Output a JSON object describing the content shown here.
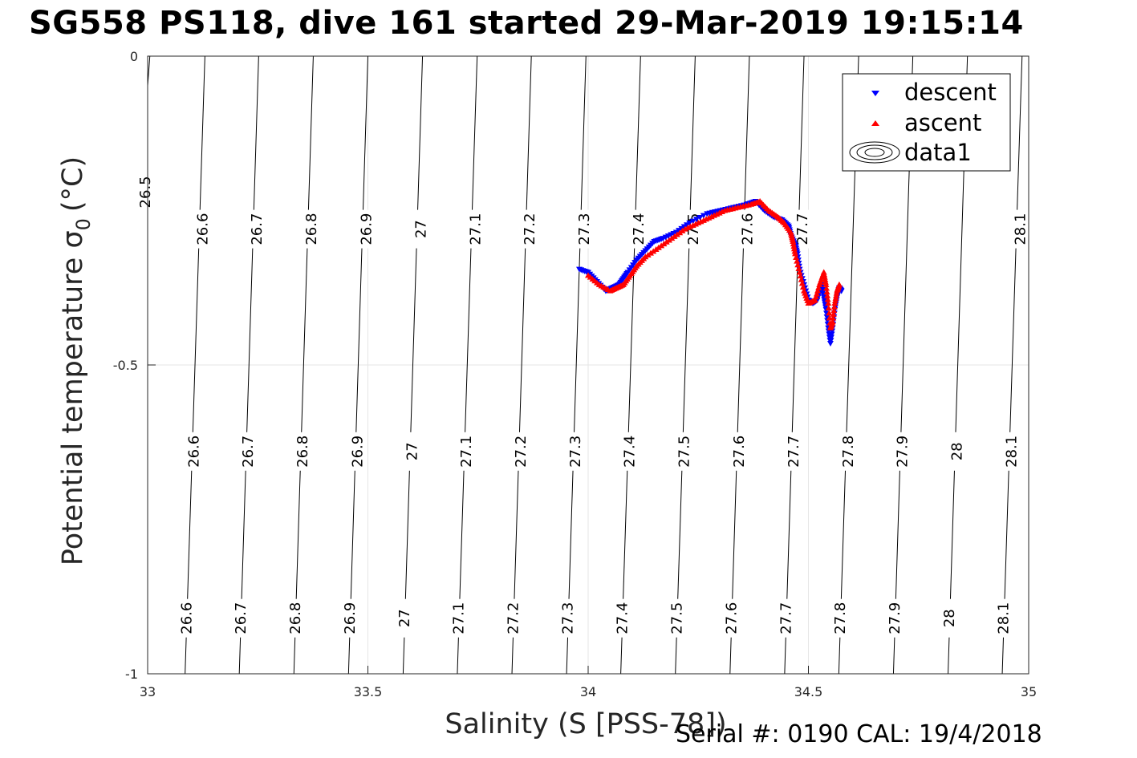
{
  "figure": {
    "title": "SG558 PS118, dive 161 started 29-Mar-2019 19:15:14",
    "footer": "Serial #: 0190  CAL: 19/4/2018"
  },
  "chart_data": {
    "type": "scatter",
    "title": "SG558 PS118, dive 161 started 29-Mar-2019 19:15:14",
    "xlabel": "Salinity (S [PSS-78])",
    "ylabel": "Potential temperature σ",
    "ylabel_subscript": "0",
    "ylabel_unit": "(°C)",
    "xlim": [
      33,
      35
    ],
    "ylim": [
      -1,
      0
    ],
    "xticks": [
      33,
      33.5,
      34,
      34.5,
      35
    ],
    "xtick_labels": [
      "33",
      "33.5",
      "34",
      "34.5",
      "35"
    ],
    "yticks": [
      0,
      -0.5,
      -1
    ],
    "ytick_labels": [
      "0",
      "-0.5",
      "-1"
    ],
    "grid": true,
    "legend": {
      "position": "top-right",
      "entries": [
        "descent",
        "ascent",
        "data1"
      ]
    },
    "colors": {
      "descent": "#0000ff",
      "ascent": "#ff0000",
      "contour": "#000000",
      "grid": "#e6e6e6"
    },
    "contours": [
      {
        "level": "26.5",
        "x_top": 33.005,
        "x_bottom": 32.9,
        "labels": [
          {
            "x": 32.995,
            "y": -0.22
          }
        ]
      },
      {
        "level": "26.6",
        "x_top": 33.13,
        "x_bottom": 33.085,
        "labels": [
          {
            "x": 33.125,
            "y": -0.28
          },
          {
            "x": 33.105,
            "y": -0.64
          },
          {
            "x": 33.088,
            "y": -0.91
          }
        ]
      },
      {
        "level": "26.7",
        "x_top": 33.252,
        "x_bottom": 33.208,
        "labels": [
          {
            "x": 33.248,
            "y": -0.28
          },
          {
            "x": 33.228,
            "y": -0.64
          },
          {
            "x": 33.211,
            "y": -0.91
          }
        ]
      },
      {
        "level": "26.8",
        "x_top": 33.376,
        "x_bottom": 33.332,
        "labels": [
          {
            "x": 33.372,
            "y": -0.28
          },
          {
            "x": 33.352,
            "y": -0.64
          },
          {
            "x": 33.335,
            "y": -0.91
          }
        ]
      },
      {
        "level": "26.9",
        "x_top": 33.5,
        "x_bottom": 33.456,
        "labels": [
          {
            "x": 33.496,
            "y": -0.28
          },
          {
            "x": 33.476,
            "y": -0.64
          },
          {
            "x": 33.459,
            "y": -0.91
          }
        ]
      },
      {
        "level": "27",
        "x_top": 33.624,
        "x_bottom": 33.58,
        "labels": [
          {
            "x": 33.62,
            "y": -0.28
          },
          {
            "x": 33.6,
            "y": -0.64
          },
          {
            "x": 33.583,
            "y": -0.91
          }
        ]
      },
      {
        "level": "27.1",
        "x_top": 33.748,
        "x_bottom": 33.703,
        "labels": [
          {
            "x": 33.744,
            "y": -0.28
          },
          {
            "x": 33.723,
            "y": -0.64
          },
          {
            "x": 33.706,
            "y": -0.91
          }
        ]
      },
      {
        "level": "27.2",
        "x_top": 33.871,
        "x_bottom": 33.827,
        "labels": [
          {
            "x": 33.867,
            "y": -0.28
          },
          {
            "x": 33.847,
            "y": -0.64
          },
          {
            "x": 33.83,
            "y": -0.91
          }
        ]
      },
      {
        "level": "27.3",
        "x_top": 33.995,
        "x_bottom": 33.951,
        "labels": [
          {
            "x": 33.991,
            "y": -0.28
          },
          {
            "x": 33.971,
            "y": -0.64
          },
          {
            "x": 33.954,
            "y": -0.91
          }
        ]
      },
      {
        "level": "27.4",
        "x_top": 34.119,
        "x_bottom": 34.074,
        "labels": [
          {
            "x": 34.115,
            "y": -0.28
          },
          {
            "x": 34.094,
            "y": -0.64
          },
          {
            "x": 34.077,
            "y": -0.91
          }
        ]
      },
      {
        "level": "27.5",
        "x_top": 34.243,
        "x_bottom": 34.198,
        "labels": [
          {
            "x": 34.239,
            "y": -0.28
          },
          {
            "x": 34.218,
            "y": -0.64
          },
          {
            "x": 34.201,
            "y": -0.91
          }
        ]
      },
      {
        "level": "27.6",
        "x_top": 34.366,
        "x_bottom": 34.322,
        "labels": [
          {
            "x": 34.362,
            "y": -0.28
          },
          {
            "x": 34.342,
            "y": -0.64
          },
          {
            "x": 34.325,
            "y": -0.91
          }
        ]
      },
      {
        "level": "27.7",
        "x_top": 34.49,
        "x_bottom": 34.446,
        "labels": [
          {
            "x": 34.486,
            "y": -0.28
          },
          {
            "x": 34.466,
            "y": -0.64
          },
          {
            "x": 34.449,
            "y": -0.91
          }
        ]
      },
      {
        "level": "27.8",
        "x_top": 34.614,
        "x_bottom": 34.569,
        "labels": [
          {
            "x": 34.59,
            "y": -0.64
          },
          {
            "x": 34.572,
            "y": -0.91
          }
        ]
      },
      {
        "level": "27.9",
        "x_top": 34.737,
        "x_bottom": 34.693,
        "labels": [
          {
            "x": 34.713,
            "y": -0.64
          },
          {
            "x": 34.696,
            "y": -0.91
          }
        ]
      },
      {
        "level": "28",
        "x_top": 34.861,
        "x_bottom": 34.817,
        "labels": [
          {
            "x": 34.837,
            "y": -0.64
          },
          {
            "x": 34.82,
            "y": -0.91
          }
        ]
      },
      {
        "level": "28.1",
        "x_top": 34.985,
        "x_bottom": 34.94,
        "labels": [
          {
            "x": 34.981,
            "y": -0.28
          },
          {
            "x": 34.961,
            "y": -0.64
          },
          {
            "x": 34.943,
            "y": -0.91
          }
        ]
      }
    ],
    "series": [
      {
        "name": "descent",
        "marker": "triangle-down",
        "x": [
          33.98,
          34.0,
          34.02,
          34.04,
          34.055,
          34.07,
          34.08,
          34.09,
          34.11,
          34.13,
          34.15,
          34.17,
          34.2,
          34.23,
          34.27,
          34.3,
          34.33,
          34.36,
          34.38,
          34.4,
          34.42,
          34.44,
          34.455,
          34.46,
          34.47,
          34.475,
          34.48,
          34.49,
          34.5,
          34.51,
          34.52,
          34.53,
          34.535,
          34.54,
          34.545,
          34.55,
          34.555,
          34.56,
          34.565,
          34.57,
          34.575
        ],
        "y": [
          -0.345,
          -0.35,
          -0.365,
          -0.38,
          -0.375,
          -0.37,
          -0.36,
          -0.35,
          -0.33,
          -0.315,
          -0.3,
          -0.295,
          -0.285,
          -0.27,
          -0.255,
          -0.25,
          -0.245,
          -0.24,
          -0.235,
          -0.25,
          -0.26,
          -0.265,
          -0.275,
          -0.29,
          -0.305,
          -0.32,
          -0.345,
          -0.37,
          -0.395,
          -0.4,
          -0.395,
          -0.37,
          -0.39,
          -0.41,
          -0.44,
          -0.465,
          -0.44,
          -0.41,
          -0.39,
          -0.375,
          -0.38
        ]
      },
      {
        "name": "ascent",
        "marker": "triangle-up",
        "x": [
          34.0,
          34.025,
          34.05,
          34.065,
          34.08,
          34.095,
          34.11,
          34.13,
          34.16,
          34.19,
          34.22,
          34.25,
          34.28,
          34.31,
          34.34,
          34.37,
          34.39,
          34.41,
          34.43,
          34.445,
          34.46,
          34.465,
          34.47,
          34.48,
          34.49,
          34.5,
          34.515,
          34.525,
          34.535,
          34.54,
          34.545,
          34.55,
          34.555,
          34.56,
          34.565,
          34.57
        ],
        "y": [
          -0.355,
          -0.37,
          -0.38,
          -0.375,
          -0.37,
          -0.355,
          -0.34,
          -0.325,
          -0.31,
          -0.295,
          -0.28,
          -0.27,
          -0.26,
          -0.25,
          -0.245,
          -0.24,
          -0.235,
          -0.25,
          -0.26,
          -0.27,
          -0.285,
          -0.3,
          -0.32,
          -0.35,
          -0.38,
          -0.4,
          -0.395,
          -0.37,
          -0.35,
          -0.37,
          -0.4,
          -0.44,
          -0.43,
          -0.4,
          -0.38,
          -0.37
        ]
      }
    ]
  }
}
